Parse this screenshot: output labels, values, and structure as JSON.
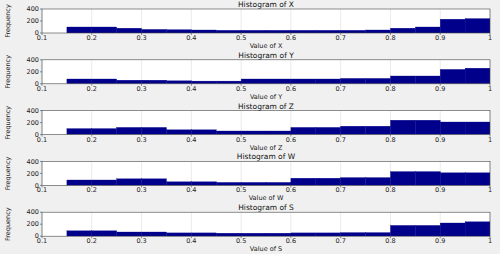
{
  "chart_data": [
    {
      "type": "histogram",
      "title": "Histogram of X",
      "x_label": "Value of X",
      "y_label": "Frequency",
      "bins": [
        0.1,
        0.15,
        0.2,
        0.25,
        0.3,
        0.35,
        0.4,
        0.45,
        0.5,
        0.55,
        0.6,
        0.65,
        0.7,
        0.75,
        0.8,
        0.85,
        0.9,
        0.95,
        1.0
      ],
      "values": [
        0,
        100,
        100,
        80,
        60,
        55,
        50,
        45,
        45,
        45,
        45,
        45,
        45,
        50,
        80,
        100,
        230,
        240
      ],
      "color": "#00008B",
      "xlim": [
        0.1,
        1.0
      ],
      "ylim": [
        0,
        400
      ],
      "yticks": [
        0,
        200,
        400
      ],
      "xticks": [
        0.1,
        0.2,
        0.3,
        0.4,
        0.5,
        0.6,
        0.7,
        0.8,
        0.9,
        1
      ],
      "grid": "x"
    },
    {
      "type": "histogram",
      "title": "Histogram of Y",
      "x_label": "Value of Y",
      "y_label": "Frequency",
      "bins": [
        0.1,
        0.15,
        0.2,
        0.25,
        0.3,
        0.35,
        0.4,
        0.45,
        0.5,
        0.55,
        0.6,
        0.65,
        0.7,
        0.75,
        0.8,
        0.85,
        0.9,
        0.95,
        1.0
      ],
      "values": [
        0,
        80,
        80,
        60,
        60,
        50,
        45,
        45,
        80,
        80,
        80,
        80,
        90,
        90,
        130,
        130,
        240,
        260
      ],
      "color": "#00008B",
      "xlim": [
        0.1,
        1.0
      ],
      "ylim": [
        0,
        400
      ],
      "yticks": [
        0,
        200,
        400
      ],
      "xticks": [
        0.1,
        0.2,
        0.3,
        0.4,
        0.5,
        0.6,
        0.7,
        0.8,
        0.9,
        1
      ],
      "grid": "x"
    },
    {
      "type": "histogram",
      "title": "Histogram of Z",
      "x_label": "Value of Z",
      "y_label": "Frequency",
      "bins": [
        0.1,
        0.15,
        0.2,
        0.25,
        0.3,
        0.35,
        0.4,
        0.45,
        0.5,
        0.55,
        0.6,
        0.65,
        0.7,
        0.75,
        0.8,
        0.85,
        0.9,
        0.95,
        1.0
      ],
      "values": [
        0,
        100,
        100,
        120,
        120,
        80,
        80,
        60,
        60,
        60,
        120,
        120,
        140,
        140,
        240,
        240,
        210,
        210
      ],
      "color": "#00008B",
      "xlim": [
        0.1,
        1.0
      ],
      "ylim": [
        0,
        400
      ],
      "yticks": [
        0,
        200,
        400
      ],
      "xticks": [
        0.1,
        0.2,
        0.3,
        0.4,
        0.5,
        0.6,
        0.7,
        0.8,
        0.9,
        1
      ],
      "grid": "x"
    },
    {
      "type": "histogram",
      "title": "Histogram of W",
      "x_label": "Value of W",
      "y_label": "Frequency",
      "bins": [
        0.1,
        0.15,
        0.2,
        0.25,
        0.3,
        0.35,
        0.4,
        0.45,
        0.5,
        0.55,
        0.6,
        0.65,
        0.7,
        0.75,
        0.8,
        0.85,
        0.9,
        0.95,
        1.0
      ],
      "values": [
        0,
        90,
        90,
        110,
        110,
        60,
        60,
        50,
        50,
        50,
        120,
        120,
        130,
        130,
        230,
        230,
        210,
        210
      ],
      "color": "#00008B",
      "xlim": [
        0.1,
        1.0
      ],
      "ylim": [
        0,
        400
      ],
      "yticks": [
        0,
        200,
        400
      ],
      "xticks": [
        0.1,
        0.2,
        0.3,
        0.4,
        0.5,
        0.6,
        0.7,
        0.8,
        0.9,
        1
      ],
      "grid": "x"
    },
    {
      "type": "histogram",
      "title": "Histogram of S",
      "x_label": "Value of S",
      "y_label": "Frequency",
      "bins": [
        0.1,
        0.15,
        0.2,
        0.25,
        0.3,
        0.35,
        0.4,
        0.45,
        0.5,
        0.55,
        0.6,
        0.65,
        0.7,
        0.75,
        0.8,
        0.85,
        0.9,
        0.95,
        1.0
      ],
      "values": [
        0,
        90,
        90,
        70,
        70,
        55,
        55,
        50,
        50,
        50,
        55,
        55,
        60,
        60,
        180,
        180,
        220,
        240
      ],
      "color": "#00008B",
      "xlim": [
        0.1,
        1.0
      ],
      "ylim": [
        0,
        400
      ],
      "yticks": [
        0,
        200,
        400
      ],
      "xticks": [
        0.1,
        0.2,
        0.3,
        0.4,
        0.5,
        0.6,
        0.7,
        0.8,
        0.9,
        1
      ],
      "grid": "x"
    }
  ]
}
